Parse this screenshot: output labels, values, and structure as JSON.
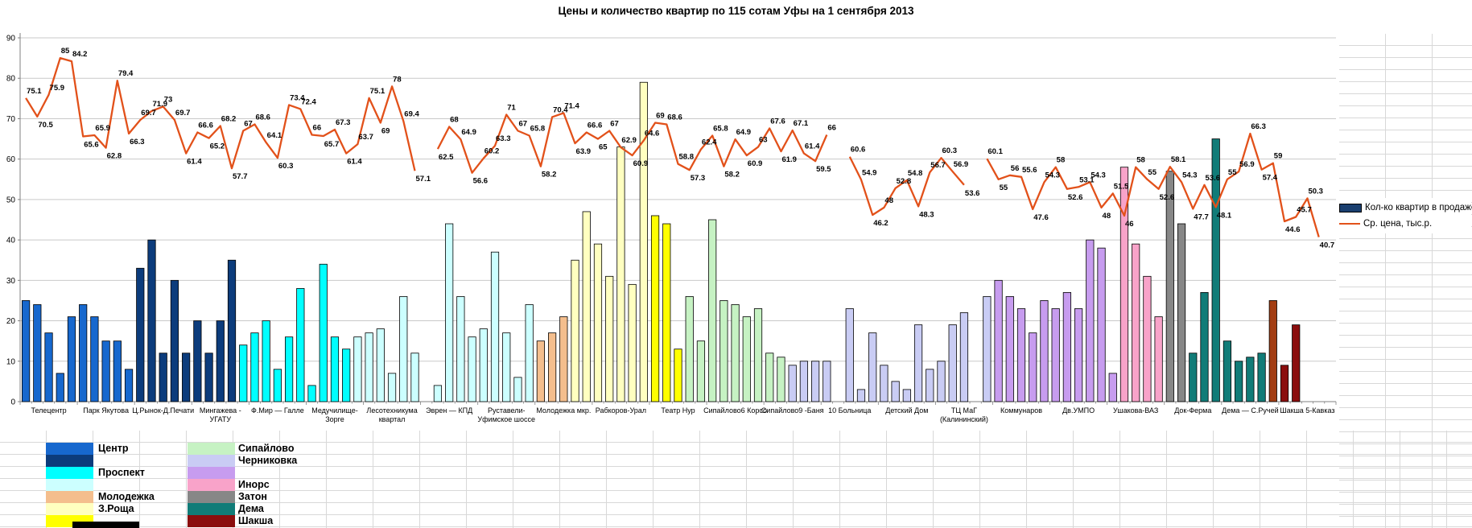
{
  "title": "Цены и количество квартир по 115 сотам Уфы на 1 сентября 2013",
  "legend": {
    "bar_label": "Кол-ко квартир в продаже",
    "line_label": "Ср. цена, тыс.р."
  },
  "chart_data": {
    "type": "bar+line",
    "title": "Цены и количество квартир по 115 сотам Уфы на 1 сентября 2013",
    "ylim": [
      0,
      90
    ],
    "ytick_step": 10,
    "grid": true,
    "legend_position": "right",
    "bars_per_category": 5,
    "categories": [
      "Телецентр",
      "Парк Якутова",
      "Ц.Рынок-Д.Печати",
      "Мингажева -\nУГАТУ",
      "Ф.Мир — Галле",
      "Медучилище-\nЗорге",
      "Лесотехникума\nквартал",
      "Эврен — КПД",
      "Руставели-\nУфимское шоссе",
      "Молодежка мкр.",
      "Рабкоров-Урал",
      "Театр Нур",
      "Сипайлово6 Корсо",
      "Сипайлово9 -Баня",
      "10 Больница",
      "Детский Дом",
      "ТЦ МаГ\n(Калининский)",
      "Коммунаров",
      "Дв.УМПО",
      "Ушакова-ВАЗ",
      "Док-Ферма",
      "Дема — С.Ручей",
      "Шакша 5-Кавказ"
    ],
    "palette": {
      "blue": "#1768CE",
      "navy": "#0C3C7C",
      "cyan": "#00FFFF",
      "paleCyan": "#CCFFFF",
      "peach": "#F4BE8D",
      "paleYellow": "#FFFFC0",
      "yellow": "#FFFF00",
      "paleGreen": "#C6F2C3",
      "lavender": "#C9CCF4",
      "violet": "#C79CEF",
      "pink": "#F8A3C9",
      "gray": "#878787",
      "teal": "#117C78",
      "brick": "#A33D12",
      "darkRed": "#8B0E0E"
    },
    "bar_series": {
      "name": "Кол-ко квартир в продаже",
      "values": [
        25,
        24,
        17,
        7,
        21,
        24,
        21,
        15,
        15,
        8,
        33,
        40,
        12,
        30,
        12,
        20,
        12,
        20,
        35,
        14,
        17,
        20,
        8,
        16,
        28,
        4,
        34,
        16,
        13,
        16,
        17,
        18,
        7,
        26,
        12,
        null,
        4,
        44,
        26,
        16,
        18,
        37,
        17,
        6,
        24,
        15,
        17,
        21,
        35,
        47,
        39,
        31,
        63,
        29,
        79,
        46,
        44,
        13,
        26,
        15,
        45,
        25,
        24,
        21,
        23,
        12,
        11,
        9,
        10,
        10,
        10,
        null,
        23,
        3,
        17,
        9,
        5,
        3,
        19,
        8,
        10,
        19,
        22,
        null,
        26,
        30,
        26,
        23,
        17,
        25,
        23,
        27,
        23,
        40,
        38,
        7,
        58,
        39,
        31,
        21,
        57,
        44,
        12,
        27,
        65,
        15,
        10,
        11,
        12,
        25,
        9,
        19,
        null,
        null,
        null
      ],
      "colors": [
        "blue",
        "blue",
        "blue",
        "blue",
        "blue",
        "blue",
        "blue",
        "blue",
        "blue",
        "blue",
        "navy",
        "navy",
        "navy",
        "navy",
        "navy",
        "navy",
        "navy",
        "navy",
        "navy",
        "cyan",
        "cyan",
        "cyan",
        "cyan",
        "cyan",
        "cyan",
        "cyan",
        "cyan",
        "cyan",
        "cyan",
        "paleCyan",
        "paleCyan",
        "paleCyan",
        "paleCyan",
        "paleCyan",
        "paleCyan",
        "paleCyan",
        "paleCyan",
        "paleCyan",
        "paleCyan",
        "paleCyan",
        "paleCyan",
        "paleCyan",
        "paleCyan",
        "paleCyan",
        "paleCyan",
        "peach",
        "peach",
        "peach",
        "paleYellow",
        "paleYellow",
        "paleYellow",
        "paleYellow",
        "paleYellow",
        "paleYellow",
        "paleYellow",
        "yellow",
        "yellow",
        "yellow",
        "paleGreen",
        "paleGreen",
        "paleGreen",
        "paleGreen",
        "paleGreen",
        "paleGreen",
        "paleGreen",
        "paleGreen",
        "paleGreen",
        "lavender",
        "lavender",
        "lavender",
        "lavender",
        "lavender",
        "lavender",
        "lavender",
        "lavender",
        "lavender",
        "lavender",
        "lavender",
        "lavender",
        "lavender",
        "lavender",
        "lavender",
        "lavender",
        "lavender",
        "lavender",
        "violet",
        "violet",
        "violet",
        "violet",
        "violet",
        "violet",
        "violet",
        "violet",
        "violet",
        "violet",
        "violet",
        "pink",
        "pink",
        "pink",
        "pink",
        "gray",
        "gray",
        "teal",
        "teal",
        "teal",
        "teal",
        "teal",
        "teal",
        "teal",
        "brick",
        "darkRed",
        "darkRed",
        "darkRed",
        "darkRed",
        "darkRed"
      ]
    },
    "line_series": {
      "name": "Ср. цена, тыс.р.",
      "color": "#E2511A",
      "values": [
        75.1,
        70.5,
        75.9,
        85,
        84.2,
        65.6,
        65.9,
        62.8,
        79.4,
        66.3,
        69.7,
        71.9,
        73,
        69.7,
        61.4,
        66.6,
        65.2,
        68.2,
        57.7,
        67,
        68.6,
        64.1,
        60.3,
        73.4,
        72.4,
        66,
        65.7,
        67.3,
        61.4,
        63.7,
        75.1,
        69,
        78,
        69.4,
        57.1,
        null,
        62.5,
        68,
        64.9,
        56.6,
        60.2,
        63.3,
        71,
        67,
        65.8,
        58.2,
        70.4,
        71.4,
        63.9,
        66.6,
        65,
        67,
        62.9,
        60.9,
        64.6,
        69,
        68.6,
        58.8,
        57.3,
        62.4,
        65.8,
        58.2,
        64.9,
        60.9,
        63,
        67.6,
        61.9,
        67.1,
        61.4,
        59.5,
        66,
        null,
        60.6,
        54.9,
        46.2,
        48,
        52.8,
        54.8,
        48.3,
        56.7,
        60.3,
        56.9,
        53.6,
        null,
        60.1,
        55,
        56,
        55.6,
        47.6,
        54.3,
        58,
        52.6,
        53.1,
        54.3,
        48,
        51.5,
        46,
        58,
        55,
        52.6,
        58.1,
        54.3,
        47.7,
        53.6,
        48.1,
        55,
        56.9,
        66.3,
        57.4,
        59,
        44.6,
        45.7,
        50.3,
        40.7,
        null
      ]
    }
  },
  "district_legend": {
    "left": [
      {
        "label": "Центр",
        "color": "blue"
      },
      {
        "label": "",
        "color": "navy"
      },
      {
        "label": "Проспект",
        "color": "cyan"
      },
      {
        "label": "",
        "color": "paleCyan"
      },
      {
        "label": "Молодежка",
        "color": "peach"
      },
      {
        "label": "З.Роща",
        "color": "paleYellow"
      },
      {
        "label": "",
        "color": "yellow"
      }
    ],
    "right": [
      {
        "label": "Сипайлово",
        "color": "paleGreen"
      },
      {
        "label": "Черниковка",
        "color": "lavender"
      },
      {
        "label": "",
        "color": "violet"
      },
      {
        "label": "Инорс",
        "color": "pink"
      },
      {
        "label": "Затон",
        "color": "gray"
      },
      {
        "label": "Дема",
        "color": "teal"
      },
      {
        "label": "Шакша",
        "color": "darkRed"
      }
    ]
  }
}
